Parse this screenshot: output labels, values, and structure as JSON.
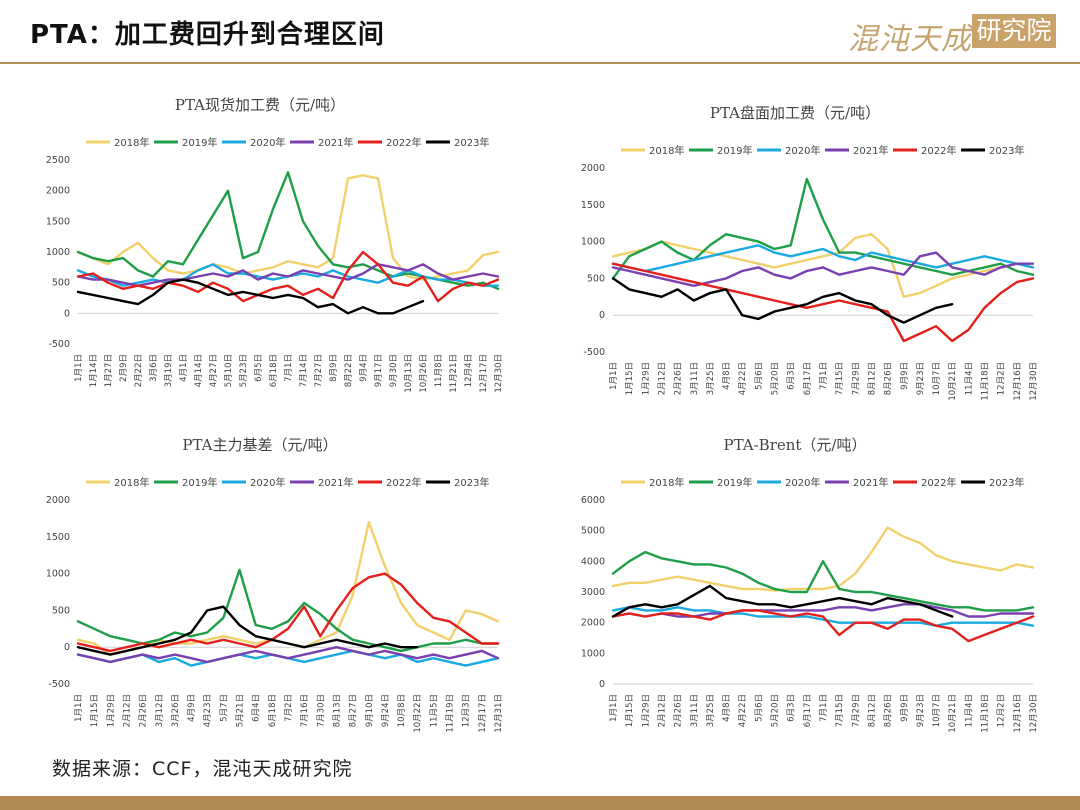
{
  "page": {
    "title": "PTA：加工费回升到合理区间",
    "source": "数据来源：CCF，混沌天成研究院",
    "logo_left": "混沌天成",
    "logo_right": "研究院"
  },
  "series_colors": {
    "2018年": "#f2d06b",
    "2019年": "#1f9e48",
    "2020年": "#1aa9e0",
    "2021年": "#7a3fb0",
    "2022年": "#e3201b",
    "2023年": "#000000"
  },
  "chart_data": [
    {
      "type": "line",
      "title": "PTA现货加工费（元/吨）",
      "legend": [
        "2018年",
        "2019年",
        "2020年",
        "2021年",
        "2022年",
        "2023年"
      ],
      "legend_position": "top",
      "ylim": [
        -500,
        2500
      ],
      "yticks": [
        "-500",
        "0",
        "500",
        "1000",
        "1500",
        "2000",
        "2500"
      ],
      "x_ticks": [
        "1月1日",
        "1月14日",
        "1月27日",
        "2月9日",
        "2月22日",
        "3月6日",
        "3月19日",
        "4月1日",
        "4月14日",
        "4月27日",
        "5月10日",
        "5月23日",
        "6月5日",
        "6月18日",
        "7月1日",
        "7月14日",
        "7月27日",
        "8月9日",
        "8月22日",
        "9月4日",
        "9月17日",
        "9月30日",
        "10月13日",
        "10月26日",
        "11月8日",
        "11月21日",
        "12月4日",
        "12月17日",
        "12月30日"
      ],
      "series": [
        {
          "name": "2018年",
          "values": [
            1000,
            900,
            800,
            1000,
            1150,
            900,
            700,
            650,
            700,
            800,
            750,
            650,
            700,
            750,
            850,
            800,
            750,
            900,
            2200,
            2250,
            2200,
            900,
            600,
            550,
            600,
            650,
            700,
            950,
            1000
          ]
        },
        {
          "name": "2019年",
          "values": [
            1000,
            900,
            850,
            900,
            700,
            600,
            850,
            800,
            1200,
            1600,
            2000,
            900,
            1000,
            1700,
            2300,
            1500,
            1100,
            800,
            750,
            800,
            700,
            600,
            650,
            600,
            550,
            500,
            450,
            500,
            400
          ]
        },
        {
          "name": "2020年",
          "values": [
            700,
            600,
            550,
            450,
            500,
            550,
            500,
            550,
            700,
            800,
            650,
            650,
            600,
            550,
            600,
            650,
            600,
            700,
            600,
            550,
            500,
            600,
            700,
            600,
            550,
            550,
            500,
            450,
            450
          ]
        },
        {
          "name": "2021年",
          "values": [
            600,
            550,
            550,
            500,
            450,
            500,
            550,
            550,
            600,
            650,
            600,
            700,
            550,
            650,
            600,
            700,
            650,
            600,
            550,
            650,
            800,
            750,
            700,
            800,
            650,
            550,
            600,
            650,
            600
          ]
        },
        {
          "name": "2022年",
          "values": [
            600,
            650,
            500,
            400,
            450,
            400,
            500,
            450,
            350,
            500,
            400,
            200,
            300,
            400,
            450,
            300,
            400,
            250,
            700,
            1000,
            800,
            500,
            450,
            600,
            200,
            400,
            500,
            450,
            550
          ]
        },
        {
          "name": "2023年",
          "values": [
            350,
            300,
            250,
            200,
            150,
            300,
            500,
            550,
            500,
            400,
            300,
            350,
            300,
            250,
            300,
            250,
            100,
            150,
            0,
            100,
            0,
            0,
            100,
            200,
            null,
            null,
            null,
            null,
            null
          ]
        }
      ]
    },
    {
      "type": "line",
      "title": "PTA盘面加工费（元/吨）",
      "legend": [
        "2018年",
        "2019年",
        "2020年",
        "2021年",
        "2022年",
        "2023年"
      ],
      "legend_position": "top",
      "ylim": [
        -500,
        2000
      ],
      "yticks": [
        "-500",
        "0",
        "500",
        "1000",
        "1500",
        "2000"
      ],
      "x_ticks": [
        "1月1日",
        "1月15日",
        "1月29日",
        "2月12日",
        "2月26日",
        "3月11日",
        "3月25日",
        "4月8日",
        "4月22日",
        "5月6日",
        "5月20日",
        "6月3日",
        "6月17日",
        "7月1日",
        "7月15日",
        "7月29日",
        "8月12日",
        "8月26日",
        "9月9日",
        "9月23日",
        "10月7日",
        "10月21日",
        "11月4日",
        "11月18日",
        "12月2日",
        "12月16日",
        "12月30日"
      ],
      "series": [
        {
          "name": "2018年",
          "values": [
            800,
            850,
            900,
            1000,
            950,
            900,
            850,
            800,
            750,
            700,
            650,
            700,
            750,
            800,
            850,
            1050,
            1100,
            900,
            250,
            300,
            400,
            500,
            550,
            600,
            650,
            700,
            650
          ]
        },
        {
          "name": "2019年",
          "values": [
            500,
            800,
            900,
            1000,
            850,
            750,
            950,
            1100,
            1050,
            1000,
            900,
            950,
            1850,
            1300,
            850,
            850,
            800,
            750,
            700,
            650,
            600,
            550,
            600,
            650,
            700,
            600,
            550
          ]
        },
        {
          "name": "2020年",
          "values": [
            700,
            650,
            600,
            650,
            700,
            750,
            800,
            850,
            900,
            950,
            850,
            800,
            850,
            900,
            800,
            750,
            850,
            800,
            750,
            700,
            650,
            700,
            750,
            800,
            750,
            700,
            650
          ]
        },
        {
          "name": "2021年",
          "values": [
            650,
            600,
            550,
            500,
            450,
            400,
            450,
            500,
            600,
            650,
            550,
            500,
            600,
            650,
            550,
            600,
            650,
            600,
            550,
            800,
            850,
            650,
            600,
            550,
            650,
            700,
            700
          ]
        },
        {
          "name": "2022年",
          "values": [
            700,
            650,
            600,
            550,
            500,
            450,
            400,
            350,
            300,
            250,
            200,
            150,
            100,
            150,
            200,
            150,
            100,
            50,
            -350,
            -250,
            -150,
            -350,
            -200,
            100,
            300,
            450,
            500
          ]
        },
        {
          "name": "2023年",
          "values": [
            500,
            350,
            300,
            250,
            350,
            200,
            300,
            350,
            0,
            -50,
            50,
            100,
            150,
            250,
            300,
            200,
            150,
            0,
            -100,
            0,
            100,
            150,
            null,
            null,
            null,
            null,
            null
          ]
        }
      ]
    },
    {
      "type": "line",
      "title": "PTA主力基差（元/吨）",
      "legend": [
        "2018年",
        "2019年",
        "2020年",
        "2021年",
        "2022年",
        "2023年"
      ],
      "legend_position": "top",
      "ylim": [
        -500,
        2000
      ],
      "yticks": [
        "-500",
        "0",
        "500",
        "1000",
        "1500",
        "2000"
      ],
      "x_ticks": [
        "1月1日",
        "1月15日",
        "1月29日",
        "2月12日",
        "2月26日",
        "3月12日",
        "3月26日",
        "4月9日",
        "4月23日",
        "5月7日",
        "5月21日",
        "6月4日",
        "6月18日",
        "7月2日",
        "7月16日",
        "7月30日",
        "8月13日",
        "8月27日",
        "9月10日",
        "9月24日",
        "10月8日",
        "10月22日",
        "11月5日",
        "11月19日",
        "12月3日",
        "12月17日",
        "12月31日"
      ],
      "series": [
        {
          "name": "2018年",
          "values": [
            100,
            50,
            -100,
            -50,
            0,
            100,
            50,
            50,
            100,
            150,
            100,
            50,
            100,
            50,
            0,
            100,
            200,
            700,
            1700,
            1100,
            600,
            300,
            200,
            100,
            500,
            450,
            350
          ]
        },
        {
          "name": "2019年",
          "values": [
            350,
            250,
            150,
            100,
            50,
            100,
            200,
            150,
            200,
            400,
            1050,
            300,
            250,
            350,
            600,
            450,
            250,
            100,
            50,
            0,
            -50,
            0,
            50,
            50,
            100,
            50,
            50
          ]
        },
        {
          "name": "2020年",
          "values": [
            -100,
            -150,
            -200,
            -150,
            -100,
            -200,
            -150,
            -250,
            -200,
            -150,
            -100,
            -150,
            -100,
            -150,
            -200,
            -150,
            -100,
            -50,
            -100,
            -150,
            -100,
            -200,
            -150,
            -200,
            -250,
            -200,
            -150
          ]
        },
        {
          "name": "2021年",
          "values": [
            -100,
            -150,
            -200,
            -150,
            -100,
            -150,
            -100,
            -150,
            -200,
            -150,
            -100,
            -50,
            -100,
            -150,
            -100,
            -50,
            0,
            -50,
            -100,
            -50,
            -100,
            -150,
            -100,
            -150,
            -100,
            -50,
            -150
          ]
        },
        {
          "name": "2022年",
          "values": [
            50,
            0,
            -50,
            0,
            50,
            0,
            50,
            100,
            50,
            100,
            50,
            0,
            100,
            250,
            550,
            150,
            500,
            800,
            950,
            1000,
            850,
            600,
            400,
            350,
            200,
            50,
            50
          ]
        },
        {
          "name": "2023年",
          "values": [
            0,
            -50,
            -100,
            -50,
            0,
            50,
            100,
            200,
            500,
            550,
            300,
            150,
            100,
            50,
            0,
            50,
            100,
            50,
            0,
            50,
            0,
            0,
            null,
            null,
            null,
            null,
            null
          ]
        }
      ]
    },
    {
      "type": "line",
      "title": "PTA-Brent（元/吨）",
      "legend": [
        "2018年",
        "2019年",
        "2020年",
        "2021年",
        "2022年",
        "2023年"
      ],
      "legend_position": "top",
      "ylim": [
        0,
        6000
      ],
      "yticks": [
        "0",
        "1000",
        "2000",
        "3000",
        "4000",
        "5000",
        "6000"
      ],
      "x_ticks": [
        "1月1日",
        "1月15日",
        "1月29日",
        "2月12日",
        "2月26日",
        "3月11日",
        "3月25日",
        "4月8日",
        "4月22日",
        "5月6日",
        "5月20日",
        "6月3日",
        "6月17日",
        "7月1日",
        "7月15日",
        "7月29日",
        "8月12日",
        "8月26日",
        "9月9日",
        "9月23日",
        "10月7日",
        "10月21日",
        "11月4日",
        "11月18日",
        "12月2日",
        "12月16日",
        "12月30日"
      ],
      "series": [
        {
          "name": "2018年",
          "values": [
            3200,
            3300,
            3300,
            3400,
            3500,
            3400,
            3300,
            3200,
            3100,
            3100,
            3050,
            3100,
            3100,
            3100,
            3200,
            3600,
            4300,
            5100,
            4800,
            4600,
            4200,
            4000,
            3900,
            3800,
            3700,
            3900,
            3800
          ]
        },
        {
          "name": "2019年",
          "values": [
            3600,
            4000,
            4300,
            4100,
            4000,
            3900,
            3900,
            3800,
            3600,
            3300,
            3100,
            3000,
            3000,
            4000,
            3100,
            3000,
            3000,
            2900,
            2800,
            2700,
            2600,
            2500,
            2500,
            2400,
            2400,
            2400,
            2500
          ]
        },
        {
          "name": "2020年",
          "values": [
            2400,
            2500,
            2400,
            2400,
            2500,
            2400,
            2400,
            2300,
            2300,
            2200,
            2200,
            2200,
            2200,
            2100,
            2000,
            2000,
            2000,
            2000,
            2000,
            2000,
            1900,
            2000,
            2000,
            2000,
            2000,
            2000,
            1900
          ]
        },
        {
          "name": "2021年",
          "values": [
            2200,
            2300,
            2200,
            2300,
            2200,
            2200,
            2300,
            2300,
            2400,
            2400,
            2400,
            2400,
            2400,
            2400,
            2500,
            2500,
            2400,
            2500,
            2600,
            2600,
            2500,
            2400,
            2200,
            2200,
            2300,
            2300,
            2300
          ]
        },
        {
          "name": "2022年",
          "values": [
            2200,
            2300,
            2200,
            2300,
            2300,
            2200,
            2100,
            2300,
            2400,
            2400,
            2300,
            2200,
            2300,
            2200,
            1600,
            2000,
            2000,
            1800,
            2100,
            2100,
            1900,
            1800,
            1400,
            1600,
            1800,
            2000,
            2200
          ]
        },
        {
          "name": "2023年",
          "values": [
            2200,
            2500,
            2600,
            2500,
            2600,
            2900,
            3200,
            2800,
            2700,
            2600,
            2600,
            2500,
            2600,
            2700,
            2800,
            2700,
            2600,
            2800,
            2700,
            2600,
            2400,
            2200,
            null,
            null,
            null,
            null,
            null
          ]
        }
      ]
    }
  ]
}
